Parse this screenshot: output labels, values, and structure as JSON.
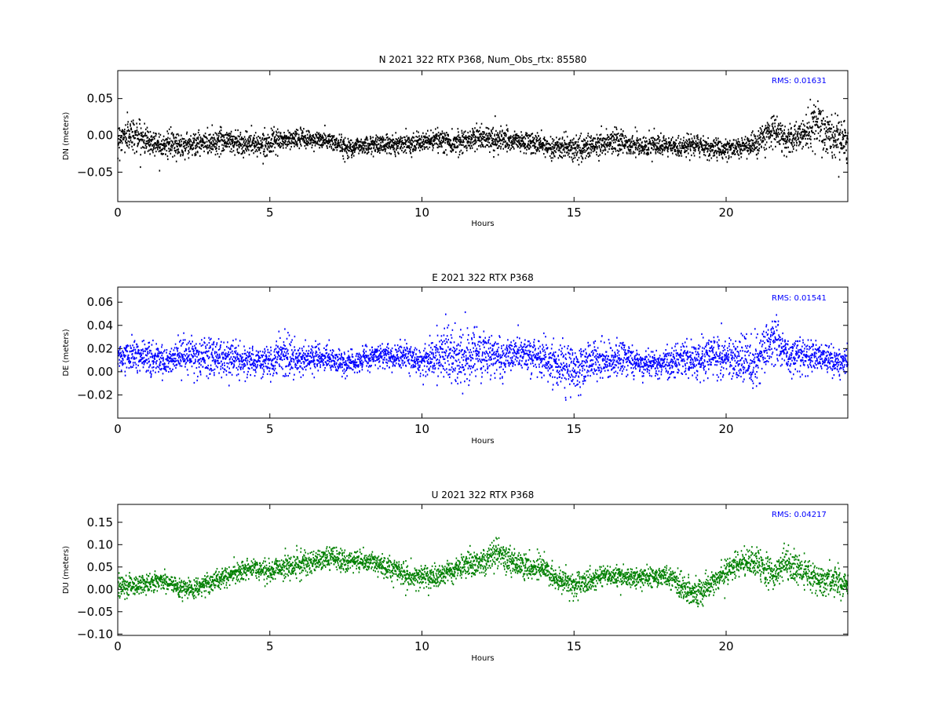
{
  "chart_data": [
    {
      "type": "scatter",
      "title": "N 2021 322 RTX  P368, Num_Obs_rtx: 85580",
      "xlabel": "Hours",
      "ylabel": "DN (meters)",
      "color": "#000000",
      "xlim": [
        0,
        24
      ],
      "ylim": [
        -0.09,
        0.088
      ],
      "xticks": [
        0,
        5,
        10,
        15,
        20
      ],
      "yticks": [
        0.05,
        0.0,
        -0.05
      ],
      "ytick_labels": [
        "0.05",
        "0.00",
        "−0.05"
      ],
      "grid": false,
      "rms_label": "RMS:  0.01631",
      "series": [
        {
          "x": [
            0,
            0.5,
            1,
            1.5,
            2,
            2.5,
            3,
            3.5,
            4,
            4.5,
            5,
            5.5,
            6,
            6.5,
            7,
            7.5,
            8,
            8.5,
            9,
            9.5,
            10,
            10.5,
            11,
            11.5,
            12,
            12.5,
            13,
            13.5,
            14,
            14.5,
            15,
            15.5,
            16,
            16.5,
            17,
            17.5,
            18,
            18.5,
            19,
            19.5,
            20,
            20.5,
            21,
            21.5,
            22,
            22.5,
            23,
            23.5,
            24
          ],
          "y": [
            -0.004,
            0.002,
            -0.008,
            -0.012,
            -0.013,
            -0.012,
            -0.01,
            -0.006,
            -0.01,
            -0.012,
            -0.01,
            -0.006,
            -0.004,
            -0.006,
            -0.008,
            -0.016,
            -0.014,
            -0.012,
            -0.012,
            -0.01,
            -0.01,
            -0.006,
            -0.01,
            -0.006,
            -0.002,
            -0.006,
            -0.008,
            -0.01,
            -0.014,
            -0.016,
            -0.018,
            -0.016,
            -0.01,
            -0.008,
            -0.014,
            -0.014,
            -0.016,
            -0.016,
            -0.012,
            -0.018,
            -0.018,
            -0.016,
            -0.012,
            0.008,
            -0.008,
            0.002,
            0.012,
            -0.004,
            -0.01
          ],
          "spread": [
            0.018,
            0.02,
            0.016,
            0.016,
            0.015,
            0.014,
            0.015,
            0.016,
            0.015,
            0.014,
            0.012,
            0.012,
            0.011,
            0.011,
            0.011,
            0.012,
            0.011,
            0.011,
            0.011,
            0.011,
            0.011,
            0.012,
            0.013,
            0.014,
            0.016,
            0.015,
            0.013,
            0.013,
            0.013,
            0.014,
            0.014,
            0.014,
            0.016,
            0.016,
            0.014,
            0.012,
            0.012,
            0.012,
            0.012,
            0.012,
            0.012,
            0.012,
            0.016,
            0.018,
            0.016,
            0.02,
            0.03,
            0.028,
            0.024
          ]
        }
      ]
    },
    {
      "type": "scatter",
      "title": "E 2021 322 RTX  P368",
      "xlabel": "Hours",
      "ylabel": "DE (meters)",
      "color": "#0000ff",
      "xlim": [
        0,
        24
      ],
      "ylim": [
        -0.04,
        0.073
      ],
      "xticks": [
        0,
        5,
        10,
        15,
        20
      ],
      "yticks": [
        0.06,
        0.04,
        0.02,
        0.0,
        -0.02
      ],
      "ytick_labels": [
        "0.06",
        "0.04",
        "0.02",
        "0.00",
        "−0.02"
      ],
      "grid": false,
      "rms_label": "RMS:  0.01541",
      "series": [
        {
          "x": [
            0,
            0.5,
            1,
            1.5,
            2,
            2.5,
            3,
            3.5,
            4,
            4.5,
            5,
            5.5,
            6,
            6.5,
            7,
            7.5,
            8,
            8.5,
            9,
            9.5,
            10,
            10.5,
            11,
            11.5,
            12,
            12.5,
            13,
            13.5,
            14,
            14.5,
            15,
            15.5,
            16,
            16.5,
            17,
            17.5,
            18,
            18.5,
            19,
            19.5,
            20,
            20.5,
            21,
            21.5,
            22,
            22.5,
            23,
            23.5,
            24
          ],
          "y": [
            0.013,
            0.014,
            0.012,
            0.01,
            0.012,
            0.014,
            0.012,
            0.012,
            0.01,
            0.008,
            0.01,
            0.014,
            0.01,
            0.012,
            0.012,
            0.006,
            0.01,
            0.014,
            0.014,
            0.012,
            0.01,
            0.016,
            0.014,
            0.012,
            0.014,
            0.01,
            0.016,
            0.014,
            0.012,
            0.006,
            0.004,
            0.008,
            0.01,
            0.012,
            0.01,
            0.006,
            0.008,
            0.012,
            0.01,
            0.014,
            0.012,
            0.01,
            0.008,
            0.03,
            0.016,
            0.012,
            0.014,
            0.008,
            0.01
          ],
          "spread": [
            0.01,
            0.011,
            0.011,
            0.012,
            0.013,
            0.014,
            0.016,
            0.016,
            0.013,
            0.012,
            0.012,
            0.016,
            0.012,
            0.01,
            0.01,
            0.01,
            0.009,
            0.009,
            0.01,
            0.01,
            0.012,
            0.018,
            0.024,
            0.022,
            0.02,
            0.016,
            0.012,
            0.012,
            0.014,
            0.018,
            0.018,
            0.016,
            0.014,
            0.012,
            0.01,
            0.01,
            0.01,
            0.012,
            0.014,
            0.016,
            0.018,
            0.018,
            0.02,
            0.02,
            0.014,
            0.012,
            0.012,
            0.012,
            0.01
          ]
        }
      ]
    },
    {
      "type": "scatter",
      "title": "U 2021 322 RTX  P368",
      "xlabel": "Hours",
      "ylabel": "DU (meters)",
      "color": "#008000",
      "xlim": [
        0,
        24
      ],
      "ylim": [
        -0.103,
        0.19
      ],
      "xticks": [
        0,
        5,
        10,
        15,
        20
      ],
      "yticks": [
        0.15,
        0.1,
        0.05,
        0.0,
        -0.05,
        -0.1
      ],
      "ytick_labels": [
        "0.15",
        "0.10",
        "0.05",
        "0.00",
        "−0.05",
        "−0.10"
      ],
      "grid": false,
      "rms_label": "RMS:  0.04217",
      "series": [
        {
          "x": [
            0,
            0.5,
            1,
            1.5,
            2,
            2.5,
            3,
            3.5,
            4,
            4.5,
            5,
            5.5,
            6,
            6.5,
            7,
            7.5,
            8,
            8.5,
            9,
            9.5,
            10,
            10.5,
            11,
            11.5,
            12,
            12.5,
            13,
            13.5,
            14,
            14.5,
            15,
            15.5,
            16,
            16.5,
            17,
            17.5,
            18,
            18.5,
            19,
            19.5,
            20,
            20.5,
            21,
            21.5,
            22,
            22.5,
            23,
            23.5,
            24
          ],
          "y": [
            0.005,
            0.01,
            0.015,
            0.02,
            0.005,
            0.0,
            0.015,
            0.025,
            0.04,
            0.045,
            0.04,
            0.05,
            0.055,
            0.065,
            0.07,
            0.06,
            0.065,
            0.06,
            0.045,
            0.03,
            0.03,
            0.03,
            0.04,
            0.06,
            0.06,
            0.08,
            0.06,
            0.05,
            0.05,
            0.02,
            0.01,
            0.02,
            0.03,
            0.03,
            0.025,
            0.03,
            0.03,
            0.01,
            -0.01,
            0.01,
            0.04,
            0.06,
            0.06,
            0.03,
            0.06,
            0.04,
            0.02,
            0.02,
            0.01
          ],
          "spread": [
            0.02,
            0.02,
            0.02,
            0.018,
            0.018,
            0.018,
            0.018,
            0.02,
            0.02,
            0.02,
            0.022,
            0.024,
            0.026,
            0.026,
            0.024,
            0.022,
            0.022,
            0.022,
            0.022,
            0.024,
            0.024,
            0.024,
            0.024,
            0.026,
            0.028,
            0.032,
            0.028,
            0.026,
            0.026,
            0.024,
            0.022,
            0.022,
            0.02,
            0.02,
            0.02,
            0.02,
            0.022,
            0.026,
            0.03,
            0.026,
            0.026,
            0.026,
            0.028,
            0.034,
            0.032,
            0.03,
            0.03,
            0.026,
            0.024
          ]
        }
      ]
    }
  ]
}
